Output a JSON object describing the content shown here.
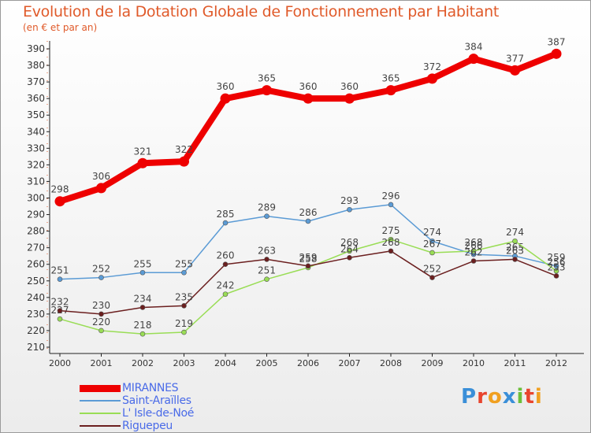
{
  "chart_data": {
    "type": "line",
    "title": "Evolution de la Dotation Globale de Fonctionnement par Habitant",
    "subtitle": "(en € et par an)",
    "xlabel": "",
    "ylabel": "",
    "categories": [
      "2000",
      "2001",
      "2002",
      "2003",
      "2004",
      "2005",
      "2006",
      "2007",
      "2008",
      "2009",
      "2010",
      "2011",
      "2012"
    ],
    "ylim": [
      210,
      390
    ],
    "yticks": [
      210,
      220,
      230,
      240,
      250,
      260,
      270,
      280,
      290,
      300,
      310,
      320,
      330,
      340,
      350,
      360,
      370,
      380,
      390
    ],
    "grid": false,
    "legend_position": "bottom-left",
    "series": [
      {
        "name": "MIRANNES",
        "color": "#ee0000",
        "emphasis": true,
        "values": [
          298,
          306,
          321,
          322,
          360,
          365,
          360,
          360,
          365,
          372,
          384,
          377,
          387
        ]
      },
      {
        "name": "Saint-Araïlles",
        "color": "#5b9bd5",
        "emphasis": false,
        "values": [
          251,
          252,
          255,
          255,
          285,
          289,
          286,
          293,
          296,
          274,
          266,
          265,
          259
        ]
      },
      {
        "name": "L' Isle-de-Noé",
        "color": "#99dd55",
        "emphasis": false,
        "values": [
          227,
          220,
          218,
          219,
          242,
          251,
          258,
          268,
          275,
          267,
          268,
          274,
          256
        ]
      },
      {
        "name": "Riguepeu",
        "color": "#6b1f1f",
        "emphasis": false,
        "values": [
          232,
          230,
          234,
          235,
          260,
          263,
          259,
          264,
          268,
          252,
          262,
          263,
          253
        ]
      }
    ]
  },
  "logo": {
    "letters": [
      {
        "char": "P",
        "color": "#3a8fd8"
      },
      {
        "char": "r",
        "color": "#e8452e"
      },
      {
        "char": "o",
        "color": "#f0a020"
      },
      {
        "char": "x",
        "color": "#3a8fd8"
      },
      {
        "char": "i",
        "color": "#6cbf3a"
      },
      {
        "char": "t",
        "color": "#e8452e"
      },
      {
        "char": "i",
        "color": "#f0a020"
      }
    ]
  }
}
